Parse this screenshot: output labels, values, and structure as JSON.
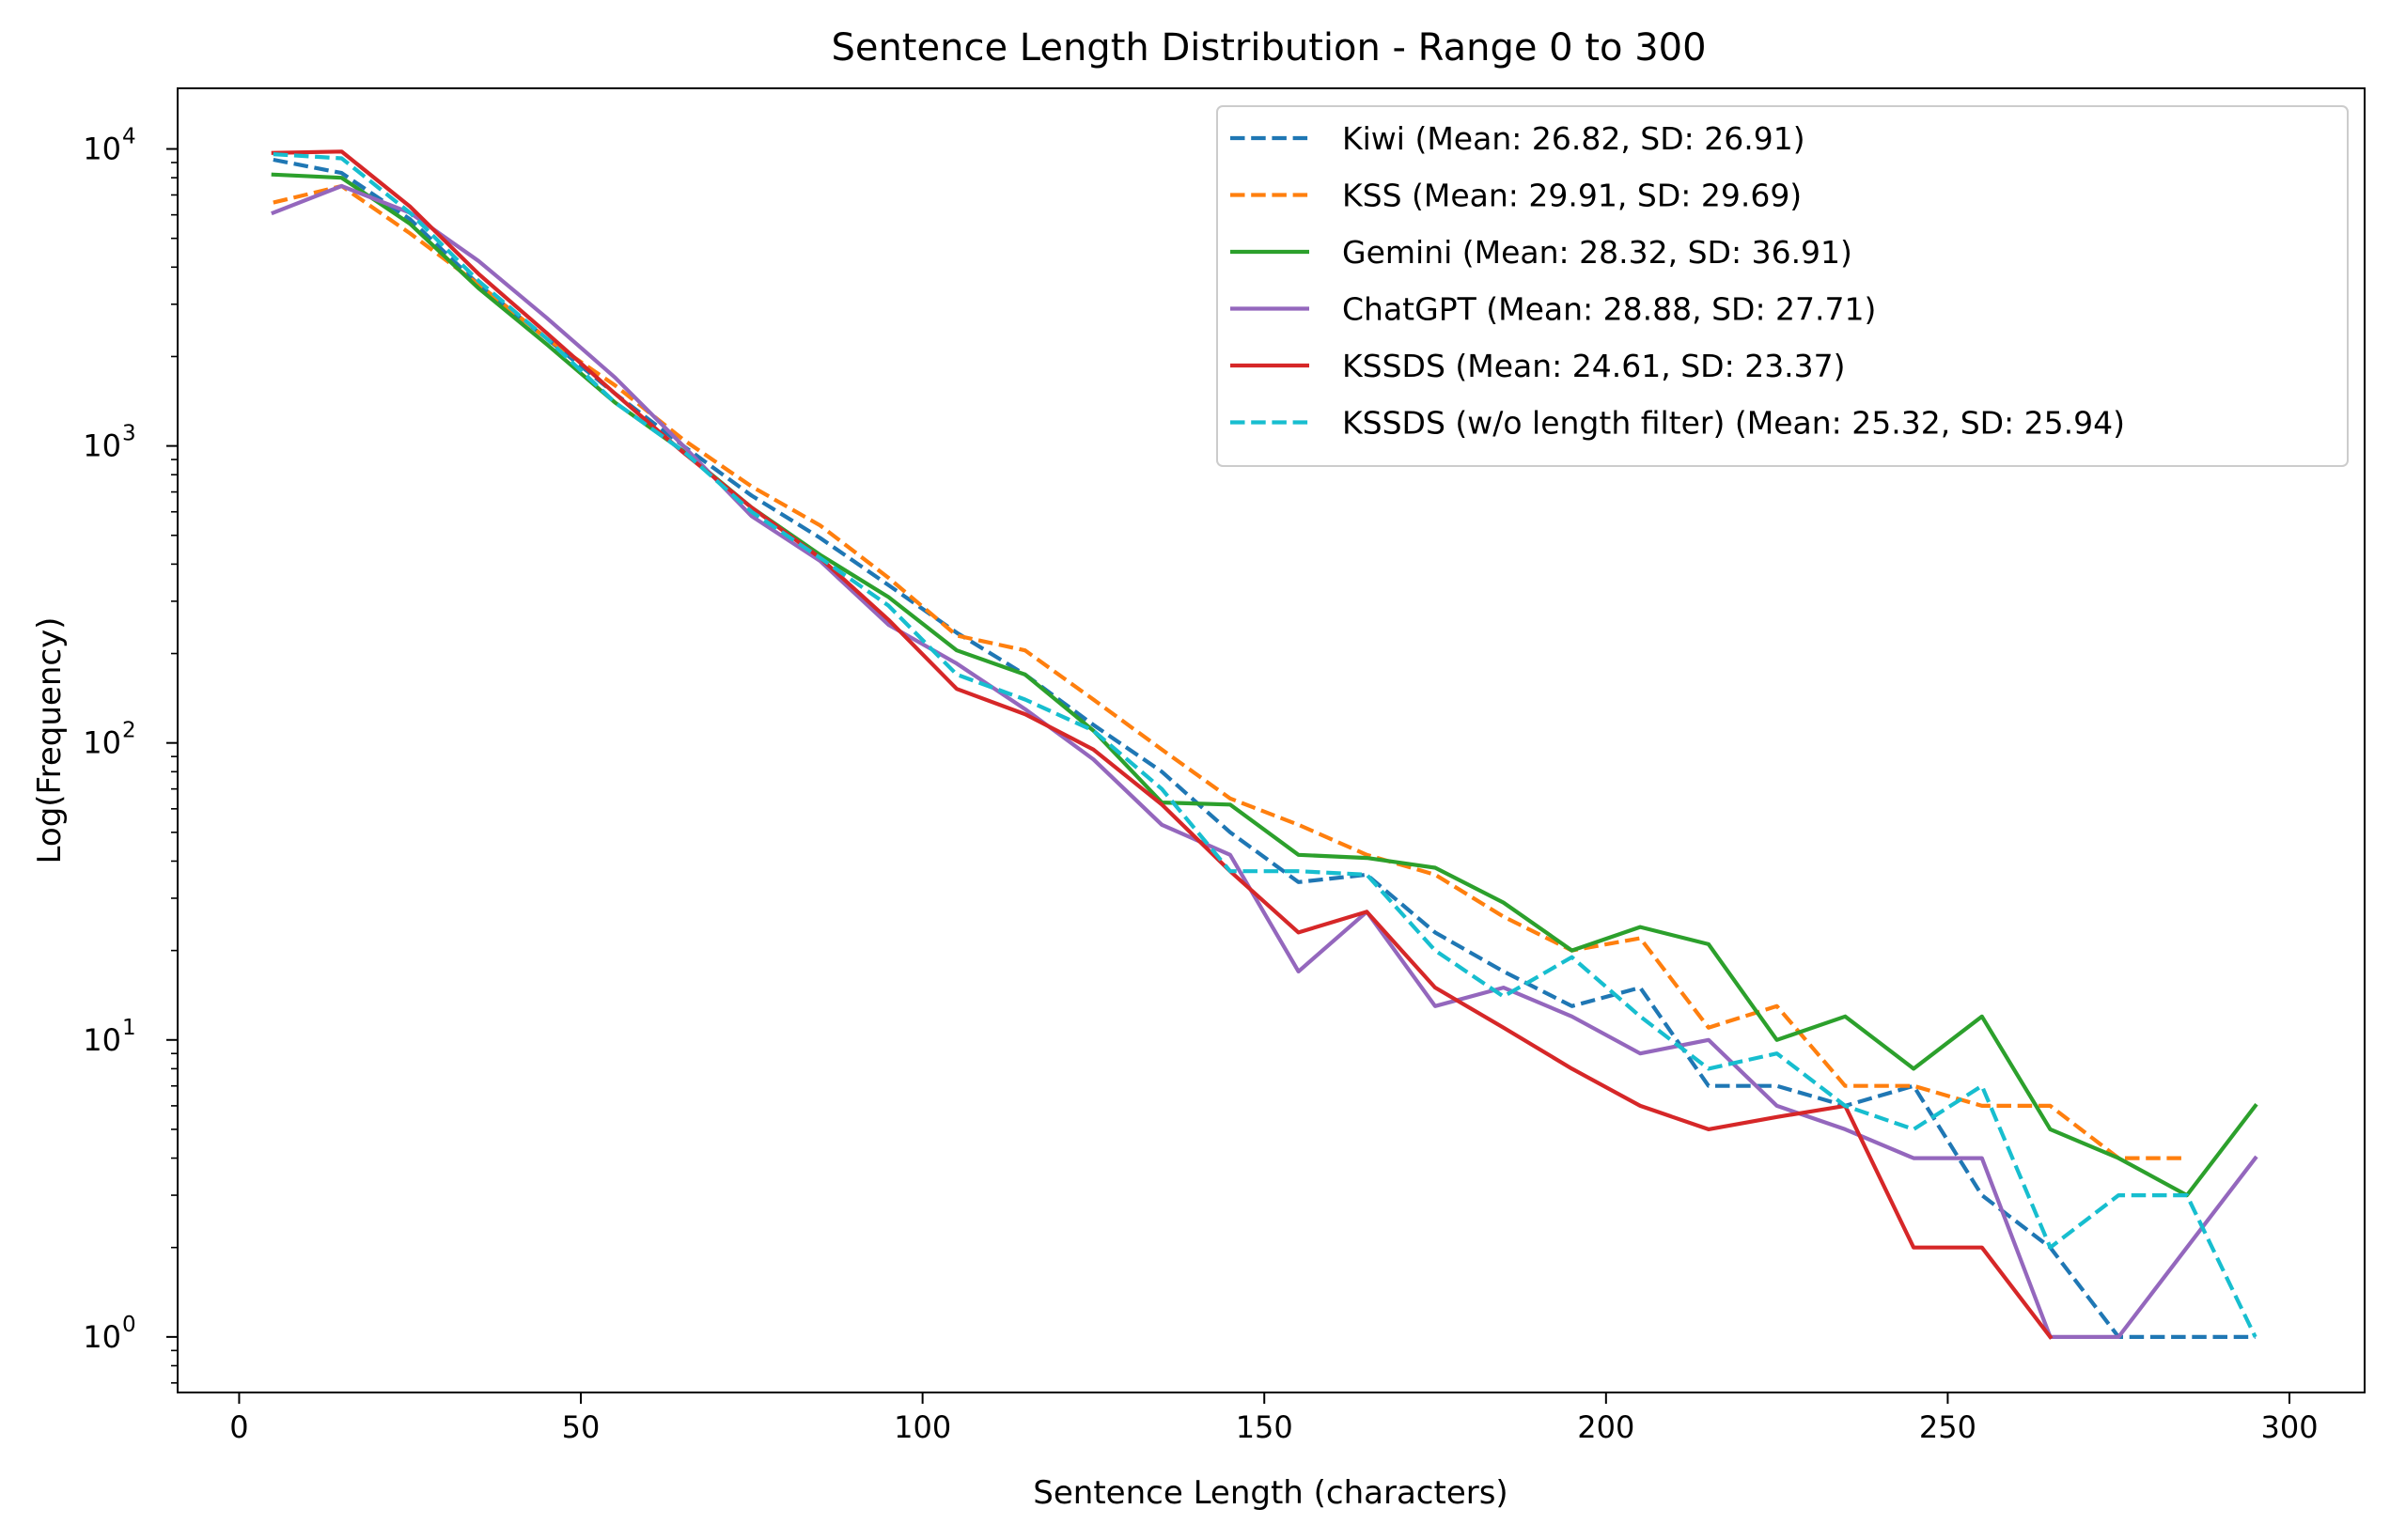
{
  "chart_data": {
    "type": "line",
    "title": "Sentence Length Distribution - Range 0 to 300",
    "xlabel": "Sentence Length (characters)",
    "ylabel": "Log(Frequency)",
    "xlim": [
      -9,
      311
    ],
    "ylim": [
      0.65,
      16000
    ],
    "yscale": "log",
    "grid": false,
    "legend_position": "top-right",
    "x_ticks": [
      0,
      50,
      100,
      150,
      200,
      250,
      300
    ],
    "x_tick_labels": [
      "0",
      "50",
      "100",
      "150",
      "200",
      "250",
      "300"
    ],
    "y_ticks": [
      1,
      10,
      100,
      1000,
      10000
    ],
    "y_tick_base": "10",
    "y_tick_exponents": [
      "0",
      "1",
      "2",
      "3",
      "4"
    ],
    "series": [
      {
        "name": "Kiwi (Mean: 26.82, SD: 26.91)",
        "color": "#1f77b4",
        "dashed": true,
        "x": [
          5,
          15,
          25,
          35,
          45,
          55,
          65,
          75,
          85,
          95,
          105,
          115,
          125,
          135,
          145,
          155,
          165,
          175,
          185,
          195,
          205,
          215,
          225,
          235,
          245,
          255,
          265,
          275,
          285,
          295
        ],
        "y": [
          9200,
          8300,
          5800,
          3500,
          2300,
          1500,
          1000,
          680,
          490,
          340,
          235,
          170,
          115,
          80,
          50,
          34,
          36,
          23,
          17,
          13,
          15,
          7,
          7,
          6,
          7,
          3,
          2,
          1,
          1,
          1
        ]
      },
      {
        "name": "KSS (Mean: 29.91, SD: 29.69)",
        "color": "#ff7f0e",
        "dashed": true,
        "x": [
          5,
          15,
          25,
          35,
          45,
          55,
          65,
          75,
          85,
          95,
          105,
          115,
          125,
          135,
          145,
          155,
          165,
          175,
          185,
          195,
          205,
          215,
          225,
          235,
          245,
          255,
          265,
          275,
          285
        ],
        "y": [
          6600,
          7500,
          5200,
          3500,
          2300,
          1600,
          1050,
          730,
          540,
          360,
          230,
          205,
          140,
          95,
          65,
          53,
          42,
          36,
          26,
          20,
          22,
          11,
          13,
          7,
          7,
          6,
          6,
          4,
          4
        ]
      },
      {
        "name": "Gemini (Mean: 28.32, SD: 36.91)",
        "color": "#2ca02c",
        "dashed": false,
        "x": [
          5,
          15,
          25,
          35,
          45,
          55,
          65,
          75,
          85,
          95,
          105,
          115,
          125,
          135,
          145,
          155,
          165,
          175,
          185,
          195,
          205,
          215,
          225,
          235,
          245,
          255,
          265,
          275,
          285,
          295
        ],
        "y": [
          8200,
          8000,
          5600,
          3400,
          2200,
          1400,
          960,
          620,
          430,
          310,
          205,
          170,
          110,
          63,
          62,
          42,
          41,
          38,
          29,
          20,
          24,
          21,
          10,
          12,
          8,
          12,
          5,
          4,
          3,
          6
        ]
      },
      {
        "name": "ChatGPT (Mean: 28.88, SD: 27.71)",
        "color": "#9467bd",
        "dashed": false,
        "x": [
          5,
          15,
          25,
          35,
          45,
          55,
          65,
          75,
          85,
          95,
          105,
          115,
          125,
          135,
          145,
          155,
          165,
          175,
          185,
          195,
          205,
          215,
          225,
          235,
          245,
          255,
          265,
          275,
          285,
          295
        ],
        "y": [
          6100,
          7500,
          6100,
          4200,
          2700,
          1700,
          1000,
          580,
          410,
          250,
          185,
          130,
          88,
          53,
          42,
          17,
          27,
          13,
          15,
          12,
          9,
          10,
          6,
          5,
          4,
          4,
          1,
          1,
          2,
          4
        ]
      },
      {
        "name": "KSSDS (Mean: 24.61, SD: 23.37)",
        "color": "#d62728",
        "dashed": false,
        "x": [
          5,
          15,
          25,
          35,
          45,
          55,
          65,
          75,
          85,
          95,
          105,
          115,
          125,
          135,
          145,
          155,
          165,
          175,
          185,
          195,
          205,
          215,
          225,
          235,
          245,
          255,
          265
        ],
        "y": [
          9700,
          9800,
          6400,
          3800,
          2400,
          1500,
          950,
          620,
          420,
          260,
          152,
          125,
          95,
          62,
          37,
          23,
          27,
          15,
          11,
          8,
          6,
          5,
          5.5,
          6,
          2,
          2,
          1
        ]
      },
      {
        "name": "KSSDS (w/o length filter) (Mean: 25.32, SD: 25.94)",
        "color": "#17becf",
        "dashed": true,
        "x": [
          5,
          15,
          25,
          35,
          45,
          55,
          65,
          75,
          85,
          95,
          105,
          115,
          125,
          135,
          145,
          155,
          165,
          175,
          185,
          195,
          205,
          215,
          225,
          235,
          245,
          255,
          265,
          275,
          285,
          295
        ],
        "y": [
          9600,
          9300,
          6100,
          3600,
          2300,
          1400,
          960,
          600,
          420,
          290,
          170,
          140,
          110,
          70,
          37,
          37,
          36,
          20,
          14,
          19,
          12,
          8,
          9,
          6,
          5,
          7,
          2,
          3,
          3,
          1
        ]
      }
    ]
  }
}
